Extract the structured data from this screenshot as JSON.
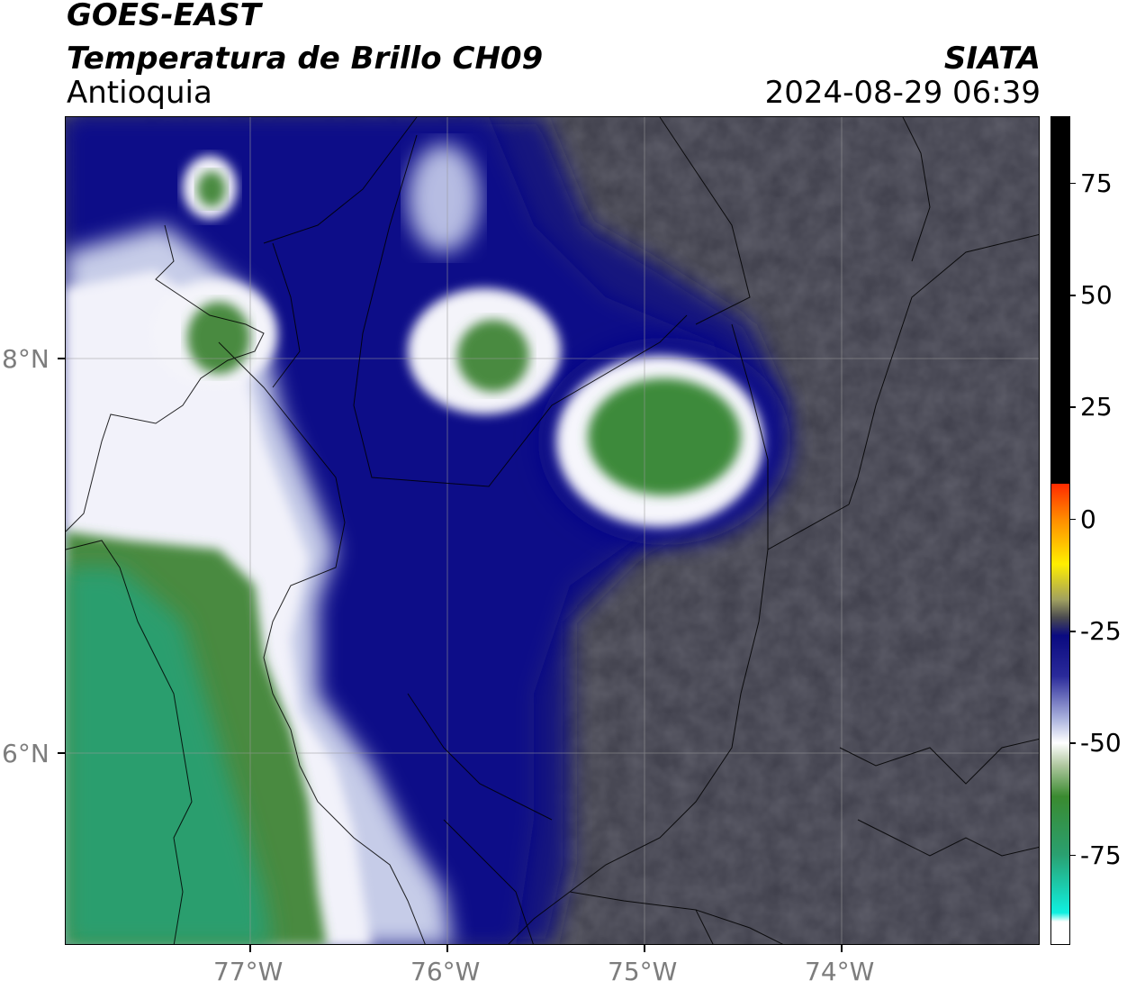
{
  "header": {
    "satellite": "GOES-EAST",
    "product": "Temperatura de Brillo CH09",
    "region": "Antioquia",
    "agency": "SIATA",
    "timestamp": "2024-08-29 06:39"
  },
  "map": {
    "lon_range": [
      -77.95,
      -73.0
    ],
    "lat_range": [
      4.95,
      9.15
    ],
    "x_ticks": [
      {
        "lon": -77,
        "label": "77°W"
      },
      {
        "lon": -76,
        "label": "76°W"
      },
      {
        "lon": -75,
        "label": "75°W"
      },
      {
        "lon": -74,
        "label": "74°W"
      }
    ],
    "y_ticks": [
      {
        "lat": 8,
        "label": "8°N"
      },
      {
        "lat": 6,
        "label": "6°N"
      }
    ],
    "background_color": "#3e3e4a",
    "cloud_systems": [
      {
        "name": "large-cold-anvil-south-west",
        "core_color": "#2a9a5a"
      },
      {
        "name": "convective-cell-east",
        "core_color": "#3a8c3a"
      },
      {
        "name": "convective-cell-central",
        "core_color": "#4a8a3a"
      },
      {
        "name": "convective-cell-north-west",
        "core_color": "#4a8a3a"
      }
    ]
  },
  "colorbar": {
    "min": -95,
    "max": 90,
    "ticks": [
      {
        "value": 75,
        "label": "75"
      },
      {
        "value": 50,
        "label": "50"
      },
      {
        "value": 25,
        "label": "25"
      },
      {
        "value": 0,
        "label": "0"
      },
      {
        "value": -25,
        "label": "-25"
      },
      {
        "value": -50,
        "label": "-50"
      },
      {
        "value": -75,
        "label": "-75"
      }
    ],
    "stops": [
      {
        "value": 90,
        "color": "#000000"
      },
      {
        "value": 8,
        "color": "#000000"
      },
      {
        "value": 8,
        "color": "#ff2a00"
      },
      {
        "value": 0,
        "color": "#ff8c00"
      },
      {
        "value": -10,
        "color": "#ffee00"
      },
      {
        "value": -18,
        "color": "#a0a060"
      },
      {
        "value": -22,
        "color": "#4a4a50"
      },
      {
        "value": -26,
        "color": "#0a0a80"
      },
      {
        "value": -35,
        "color": "#2a2a9a"
      },
      {
        "value": -45,
        "color": "#b0b8e0"
      },
      {
        "value": -50,
        "color": "#ffffff"
      },
      {
        "value": -55,
        "color": "#b0c8a0"
      },
      {
        "value": -62,
        "color": "#3a8a30"
      },
      {
        "value": -75,
        "color": "#2aa070"
      },
      {
        "value": -88,
        "color": "#10f0e0"
      },
      {
        "value": -90,
        "color": "#ffffff"
      },
      {
        "value": -95,
        "color": "#ffffff"
      }
    ]
  }
}
